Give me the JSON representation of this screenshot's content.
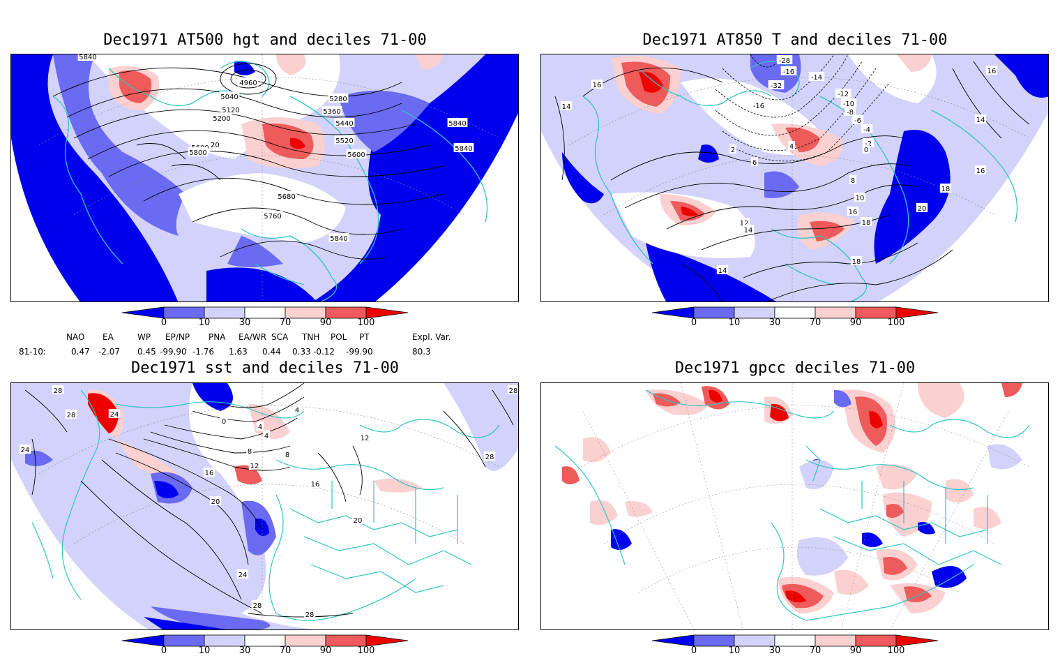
{
  "panels": {
    "hgt": {
      "title": "Dec1971 AT500 hgt and deciles 71-00",
      "contour_labels": [
        "5840",
        "4960",
        "5040",
        "5120",
        "5200",
        "5280",
        "5360",
        "5440",
        "5520",
        "5600",
        "5680",
        "5760",
        "5840",
        "5520",
        "5600",
        "5800",
        "5840",
        "5840"
      ]
    },
    "t850": {
      "title": "Dec1971 AT850 T and deciles 71-00",
      "contour_labels": [
        "-28",
        "-16",
        "-32",
        "-16",
        "-14",
        "-12",
        "-10",
        "-8",
        "-6",
        "-4",
        "-2",
        "0",
        "2",
        "4",
        "6",
        "8",
        "10",
        "12",
        "14",
        "16",
        "18",
        "20",
        "16",
        "14",
        "16",
        "14",
        "14",
        "16",
        "18",
        "18"
      ]
    },
    "sst": {
      "title": "Dec1971 sst and deciles 71-00",
      "contour_labels": [
        "28",
        "28",
        "24",
        "24",
        "0",
        "4",
        "4",
        "8",
        "12",
        "16",
        "20",
        "24",
        "28",
        "28",
        "4",
        "8",
        "12",
        "16",
        "20",
        "28",
        "28"
      ]
    },
    "gpcc": {
      "title": "Dec1971 gpcc deciles 71-00"
    }
  },
  "colorbar": {
    "labels": [
      "0",
      "10",
      "30",
      "70",
      "90",
      "100"
    ],
    "colors": [
      "#0000ee",
      "#6a6af2",
      "#d2d2fa",
      "#ffffff",
      "#fbd0d0",
      "#ef5a5a",
      "#ee0000"
    ]
  },
  "indices": {
    "headers": [
      "NAO",
      "EA",
      "WP",
      "EP/NP",
      "PNA",
      "EA/WR",
      "SCA",
      "TNH",
      "POL",
      "PT",
      "Expl. Var."
    ],
    "row_label": "81-10:",
    "values": [
      "0.47",
      "-2.07",
      "0.45",
      "-99.90",
      "-1.76",
      "1.63",
      "0.44",
      "0.33",
      "-0.12",
      "-99.90",
      "80.3"
    ]
  }
}
